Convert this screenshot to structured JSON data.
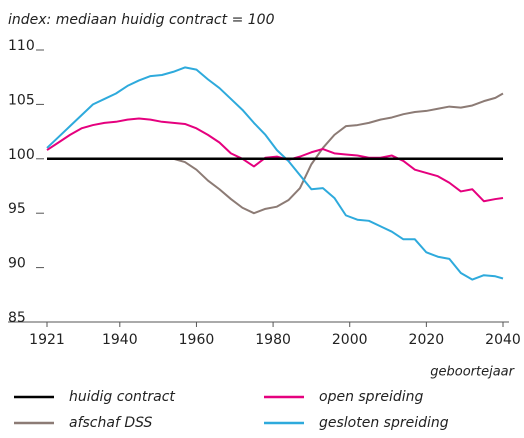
{
  "chart_data": {
    "type": "line",
    "ylabel": "index: mediaan huidig contract = 100",
    "xlabel": "geboortejaar",
    "x": [
      1921,
      1924,
      1927,
      1930,
      1933,
      1936,
      1939,
      1942,
      1945,
      1948,
      1951,
      1954,
      1957,
      1960,
      1963,
      1966,
      1969,
      1972,
      1975,
      1978,
      1981,
      1984,
      1987,
      1990,
      1993,
      1996,
      1999,
      2002,
      2005,
      2008,
      2011,
      2014,
      2017,
      2020,
      2023,
      2026,
      2029,
      2032,
      2035,
      2038,
      2040
    ],
    "series": [
      {
        "name": "huidig contract",
        "color": "#000000",
        "values": [
          100,
          100,
          100,
          100,
          100,
          100,
          100,
          100,
          100,
          100,
          100,
          100,
          100,
          100,
          100,
          100,
          100,
          100,
          100,
          100,
          100,
          100,
          100,
          100,
          100,
          100,
          100,
          100,
          100,
          100,
          100,
          100,
          100,
          100,
          100,
          100,
          100,
          100,
          100,
          100,
          100
        ]
      },
      {
        "name": "afschaf DSS",
        "color": "#8c7b75",
        "values": [
          100,
          100,
          100,
          100,
          100,
          100,
          100,
          100,
          100,
          100,
          100,
          100,
          99.7,
          99,
          98,
          97.2,
          96.3,
          95.5,
          95.0,
          95.4,
          95.6,
          96.2,
          97.3,
          99.5,
          101,
          102.2,
          103.0,
          103.1,
          103.3,
          103.6,
          103.8,
          104.1,
          104.3,
          104.4,
          104.6,
          104.8,
          104.7,
          104.9,
          105.3,
          105.6,
          106.0
        ]
      },
      {
        "name": "open spreiding",
        "color": "#e5007e",
        "values": [
          100.8,
          101.5,
          102.2,
          102.8,
          103.1,
          103.3,
          103.4,
          103.6,
          103.7,
          103.6,
          103.4,
          103.3,
          103.2,
          102.8,
          102.2,
          101.5,
          100.5,
          100.0,
          99.3,
          100.1,
          100.2,
          99.9,
          100.2,
          100.6,
          100.9,
          100.5,
          100.4,
          100.3,
          100.1,
          100.1,
          100.3,
          99.8,
          99.0,
          98.7,
          98.4,
          97.8,
          97.0,
          97.2,
          96.1,
          96.3,
          96.4
        ]
      },
      {
        "name": "gesloten spreiding",
        "color": "#2eaadc",
        "values": [
          101,
          102,
          103,
          104,
          105,
          105.5,
          106,
          106.7,
          107.2,
          107.6,
          107.7,
          108.0,
          108.4,
          108.2,
          107.3,
          106.5,
          105.5,
          104.5,
          103.3,
          102.2,
          100.8,
          99.8,
          98.5,
          97.2,
          97.3,
          96.4,
          94.8,
          94.4,
          94.3,
          93.8,
          93.3,
          92.6,
          92.6,
          91.4,
          91.0,
          90.8,
          89.5,
          88.9,
          89.3,
          89.2,
          89.0
        ]
      }
    ],
    "xlim": [
      1921,
      2040
    ],
    "xticks": [
      1921,
      1940,
      1960,
      1980,
      2000,
      2020,
      2040
    ],
    "ylim": [
      85,
      110
    ],
    "yticks": [
      85,
      90,
      95,
      100,
      105,
      110
    ]
  }
}
